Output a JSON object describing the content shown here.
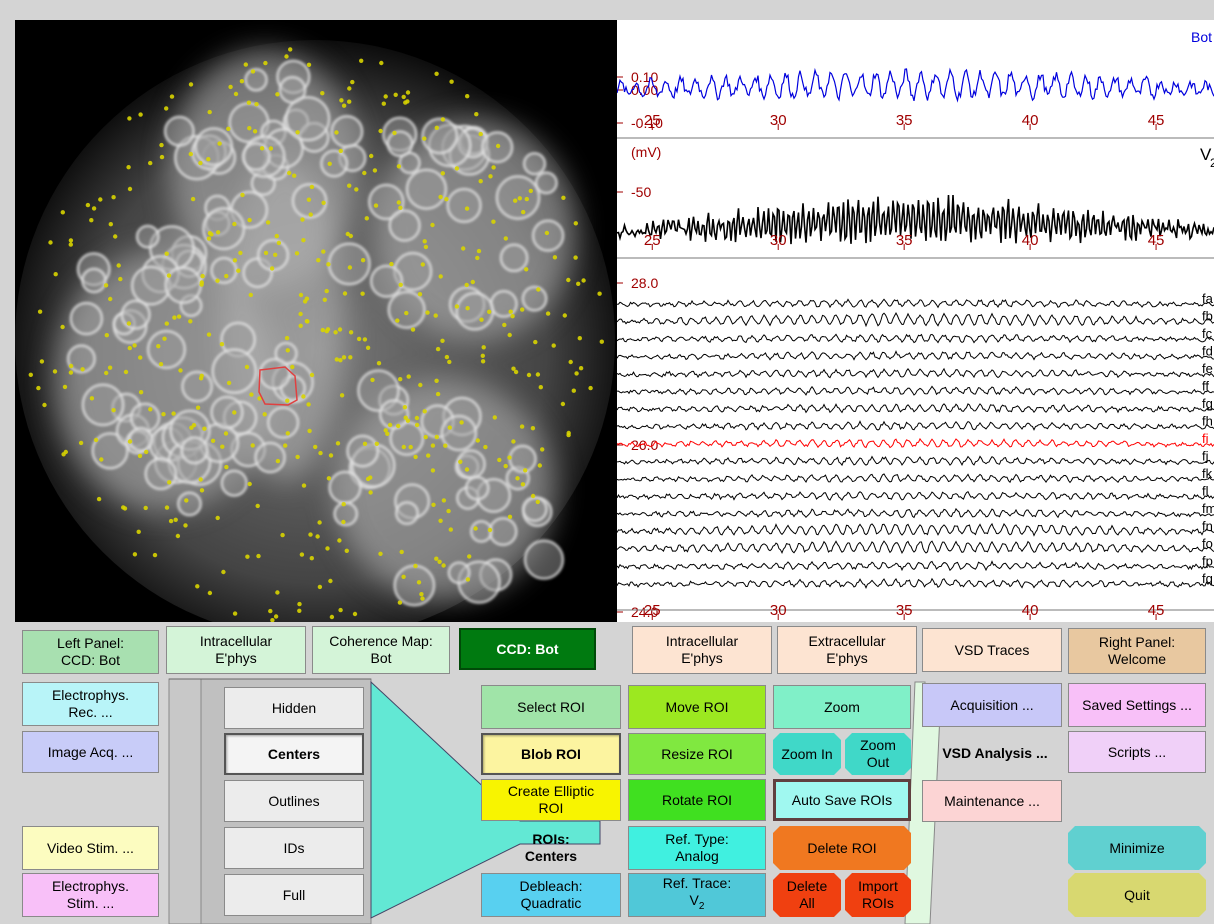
{
  "left_tabs": {
    "left_panel": "Left Panel:\nCCD: Bot",
    "intracellular": "Intracellular\nE'phys",
    "coherence": "Coherence Map:\nBot",
    "ccd_bot": "CCD: Bot"
  },
  "right_tabs": {
    "intracellular": "Intracellular\nE'phys",
    "extracellular": "Extracellular\nE'phys",
    "vsd_traces": "VSD Traces",
    "right_panel": "Right Panel:\nWelcome"
  },
  "left_menu": {
    "electrophys_rec": "Electrophys.\nRec. ...",
    "image_acq": "Image Acq. ...",
    "video_stim": "Video Stim. ...",
    "electrophys_stim": "Electrophys.\nStim. ..."
  },
  "view_modes": [
    "Hidden",
    "Centers",
    "Outlines",
    "IDs",
    "Full"
  ],
  "roi_controls": {
    "select_roi": "Select ROI",
    "move_roi": "Move ROI",
    "zoom": "Zoom",
    "blob_roi": "Blob ROI",
    "resize_roi": "Resize ROI",
    "zoom_in": "Zoom In",
    "zoom_out": "Zoom\nOut",
    "create_elliptic_roi": "Create Elliptic\nROI",
    "rotate_roi": "Rotate ROI",
    "auto_save_rois": "Auto Save ROIs",
    "rois_centers": "ROIs:\nCenters",
    "ref_type": "Ref. Type:\nAnalog",
    "delete_roi": "Delete ROI",
    "debleach": "Debleach:\nQuadratic",
    "ref_trace_prefix": "Ref. Trace:",
    "ref_trace_var": "V",
    "ref_trace_sub": "2",
    "delete_all": "Delete\nAll",
    "import_rois": "Import\nROIs"
  },
  "right_menu": {
    "acquisition": "Acquisition ...",
    "vsd_analysis": "VSD Analysis ...",
    "maintenance": "Maintenance ...",
    "saved_settings": "Saved Settings ...",
    "scripts": "Scripts ...",
    "minimize": "Minimize",
    "quit": "Quit"
  },
  "colors": {
    "axis_red": "#a00000",
    "trace_blue": "#0000dd",
    "trace_black": "#000000",
    "trace_highlight": "#ff0000",
    "roi_dot": "#d8d400",
    "roi_outline": "#e04040"
  },
  "chart_data": [
    {
      "type": "line",
      "name": "Bot",
      "x_ticks": [
        25,
        30,
        35,
        40,
        45
      ],
      "xlim": [
        23.6,
        47.3
      ],
      "y_ticks": [
        "0.10",
        "0.00",
        "-0.10"
      ],
      "legend": "Bot"
    },
    {
      "type": "line",
      "ylabel": "(mV)",
      "x_ticks": [
        25,
        30,
        35,
        40,
        45
      ],
      "xlim": [
        23.6,
        47.3
      ],
      "y_ticks": [
        "-50"
      ],
      "legend_var": "V",
      "legend_sub": "2"
    },
    {
      "type": "line",
      "x_ticks": [
        25,
        30,
        35,
        40,
        45
      ],
      "xlim": [
        23.6,
        47.3
      ],
      "y_ticks": [
        "28.0",
        "26.0",
        "24.0"
      ],
      "series_labels": [
        "fa",
        "fb",
        "fc",
        "fd",
        "fe",
        "ff",
        "fg",
        "fh",
        "fi",
        "fj",
        "fk",
        "fl",
        "fm",
        "fn",
        "fo",
        "fp",
        "fq"
      ]
    }
  ]
}
